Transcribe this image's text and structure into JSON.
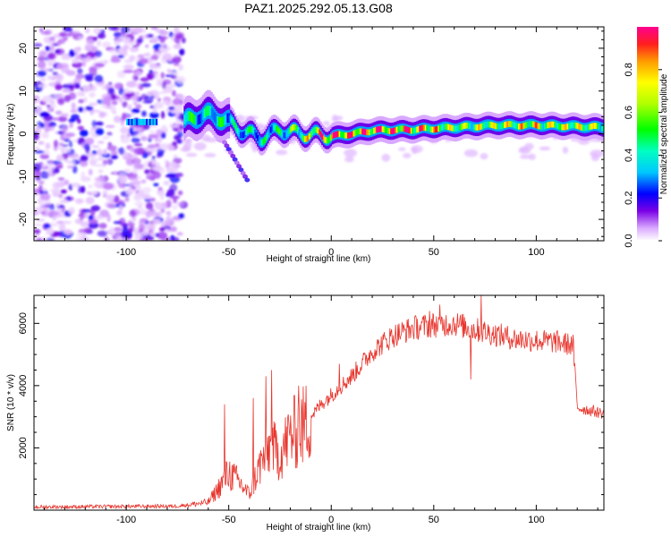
{
  "title": "PAZ1.2025.292.05.13.G08",
  "chart_data": [
    {
      "type": "heatmap",
      "name": "spectrogram",
      "xlabel": "Height of straight line (km)",
      "ylabel": "Frequency (Hz)",
      "xlim": [
        -145,
        133
      ],
      "ylim": [
        -25,
        25
      ],
      "xticks": [
        -100,
        -50,
        0,
        50,
        100
      ],
      "yticks": [
        -20,
        -10,
        0,
        10,
        20
      ],
      "colorbar": {
        "label": "Normalized spectral amplitude",
        "range": [
          0,
          1
        ],
        "ticks": [
          "0.0",
          "0.2",
          "0.4",
          "0.6",
          "0.8"
        ]
      },
      "features": {
        "noise_region_x": [
          -145,
          -72
        ],
        "signal_track": [
          {
            "x": -72,
            "freq": 2.5,
            "amp": 0.6
          },
          {
            "x": -65,
            "freq": 4.5,
            "amp": 0.35
          },
          {
            "x": -55,
            "freq": 4.0,
            "amp": 0.45
          },
          {
            "x": -45,
            "freq": 1.0,
            "amp": 0.4
          },
          {
            "x": -35,
            "freq": -1.0,
            "amp": 0.4
          },
          {
            "x": -25,
            "freq": 1.0,
            "amp": 0.45
          },
          {
            "x": -15,
            "freq": 0.0,
            "amp": 0.6
          },
          {
            "x": 0,
            "freq": -0.5,
            "amp": 0.9
          },
          {
            "x": 10,
            "freq": 0.0,
            "amp": 0.8
          },
          {
            "x": 20,
            "freq": 0.8,
            "amp": 0.9
          },
          {
            "x": 40,
            "freq": 1.0,
            "amp": 0.85
          },
          {
            "x": 60,
            "freq": 1.5,
            "amp": 0.6
          },
          {
            "x": 80,
            "freq": 2.0,
            "amp": 0.65
          },
          {
            "x": 100,
            "freq": 2.0,
            "amp": 0.7
          },
          {
            "x": 133,
            "freq": 1.5,
            "amp": 0.65
          }
        ]
      }
    },
    {
      "type": "line",
      "name": "snr",
      "xlabel": "Height of straight line (km)",
      "ylabel": "SNR (10 * v/v)",
      "xlim": [
        -145,
        133
      ],
      "ylim": [
        0,
        6900
      ],
      "xticks": [
        -100,
        -50,
        0,
        50,
        100
      ],
      "yticks": [
        2000,
        4000,
        6000
      ],
      "color": "#e8362e",
      "series": [
        {
          "name": "SNR",
          "envelope": [
            {
              "x": -145,
              "y": 100
            },
            {
              "x": -75,
              "y": 130
            },
            {
              "x": -60,
              "y": 250
            },
            {
              "x": -55,
              "y": 700
            },
            {
              "x": -50,
              "y": 1200
            },
            {
              "x": -45,
              "y": 900
            },
            {
              "x": -40,
              "y": 500
            },
            {
              "x": -35,
              "y": 1400
            },
            {
              "x": -30,
              "y": 2000
            },
            {
              "x": -25,
              "y": 1800
            },
            {
              "x": -20,
              "y": 2400
            },
            {
              "x": -15,
              "y": 2600
            },
            {
              "x": -10,
              "y": 3000
            },
            {
              "x": -5,
              "y": 3400
            },
            {
              "x": 0,
              "y": 3700
            },
            {
              "x": 10,
              "y": 4300
            },
            {
              "x": 20,
              "y": 5100
            },
            {
              "x": 30,
              "y": 5600
            },
            {
              "x": 40,
              "y": 5850
            },
            {
              "x": 50,
              "y": 5950
            },
            {
              "x": 60,
              "y": 6000
            },
            {
              "x": 70,
              "y": 5800
            },
            {
              "x": 80,
              "y": 5650
            },
            {
              "x": 90,
              "y": 5500
            },
            {
              "x": 100,
              "y": 5450
            },
            {
              "x": 110,
              "y": 5400
            },
            {
              "x": 118,
              "y": 5300
            },
            {
              "x": 120,
              "y": 3300
            },
            {
              "x": 133,
              "y": 3100
            }
          ],
          "spikes": [
            {
              "x": -52,
              "y": 3400
            },
            {
              "x": -38,
              "y": 3600
            },
            {
              "x": -32,
              "y": 4300
            },
            {
              "x": -29,
              "y": 4500
            },
            {
              "x": -16,
              "y": 4000
            },
            {
              "x": 4,
              "y": 4700
            },
            {
              "x": 48,
              "y": 6400
            },
            {
              "x": 53,
              "y": 6600
            },
            {
              "x": 68,
              "y": 4200
            },
            {
              "x": 73,
              "y": 6900
            }
          ]
        }
      ]
    }
  ]
}
